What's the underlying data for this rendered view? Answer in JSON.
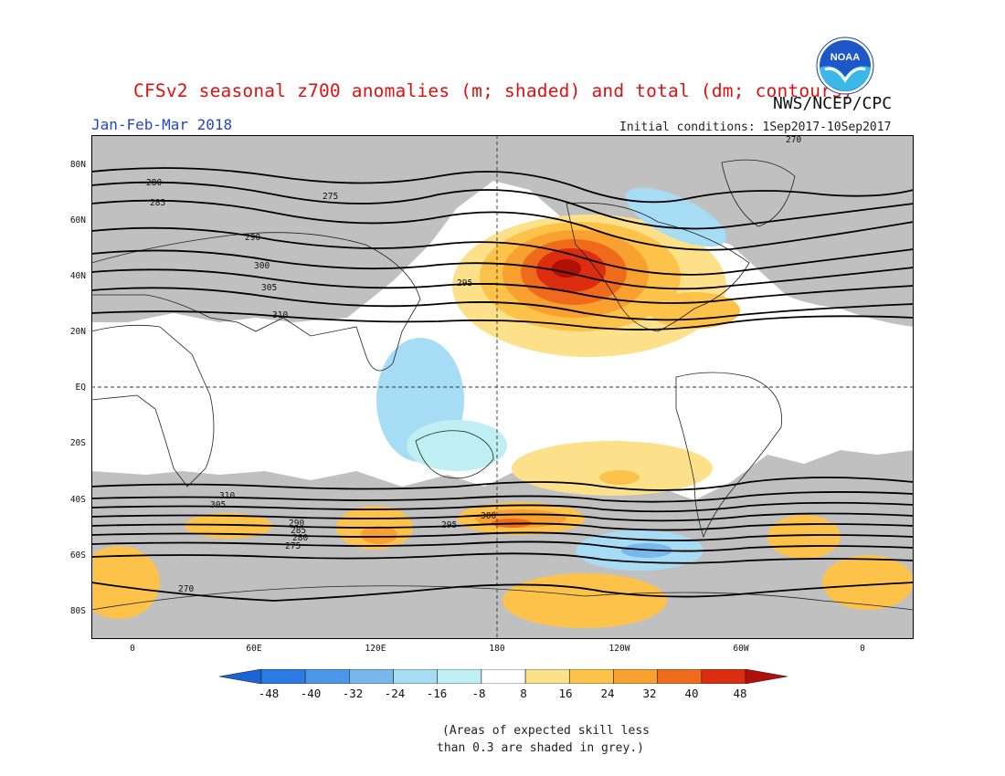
{
  "header": {
    "title": "CFSv2 seasonal z700 anomalies (m; shaded) and total (dm; contours)",
    "agency": "NWS/NCEP/CPC",
    "season": "Jan-Feb-Mar 2018",
    "initial_conditions": "Initial conditions: 1Sep2017-10Sep2017",
    "logo_text": "NOAA"
  },
  "map": {
    "lat_labels": [
      "80N",
      "60N",
      "40N",
      "20N",
      "EQ",
      "20S",
      "40S",
      "60S",
      "80S"
    ],
    "lon_labels": [
      "0",
      "60E",
      "120E",
      "180",
      "120W",
      "60W",
      "0"
    ],
    "contour_labels": {
      "n270": "270",
      "n275": "275",
      "n280": "280",
      "n285": "285",
      "n290": "290",
      "n295": "295",
      "n300": "300",
      "n305": "305",
      "n310": "310",
      "s310": "310",
      "s305": "305",
      "s300": "300",
      "s295": "295",
      "s290": "290",
      "s285": "285",
      "s280": "280",
      "s275": "275",
      "s270": "270"
    },
    "colors": {
      "skill_grey": "#c0c0c0",
      "pos_8": "#fde08a",
      "pos_16": "#fcc24a",
      "pos_24": "#f8a030",
      "pos_32": "#f06a1c",
      "pos_40": "#dd2d10",
      "pos_48": "#b01008",
      "neg_8": "#bfeef3",
      "neg_16": "#a7dcf5",
      "neg_24": "#78b8ec"
    }
  },
  "colorbar": {
    "ticks": [
      "-48",
      "-40",
      "-32",
      "-24",
      "-16",
      "-8",
      "8",
      "16",
      "24",
      "32",
      "40",
      "48"
    ],
    "colors": [
      "#1a64d8",
      "#2c7ae4",
      "#4a96ea",
      "#78b8ec",
      "#a7dcf5",
      "#bfeef3",
      "#ffffff",
      "#fde08a",
      "#fcc24a",
      "#f8a030",
      "#f06a1c",
      "#dd2d10",
      "#b01008"
    ]
  },
  "note": {
    "line1": "(Areas of expected skill less",
    "line2": "than 0.3 are shaded in grey.)"
  }
}
